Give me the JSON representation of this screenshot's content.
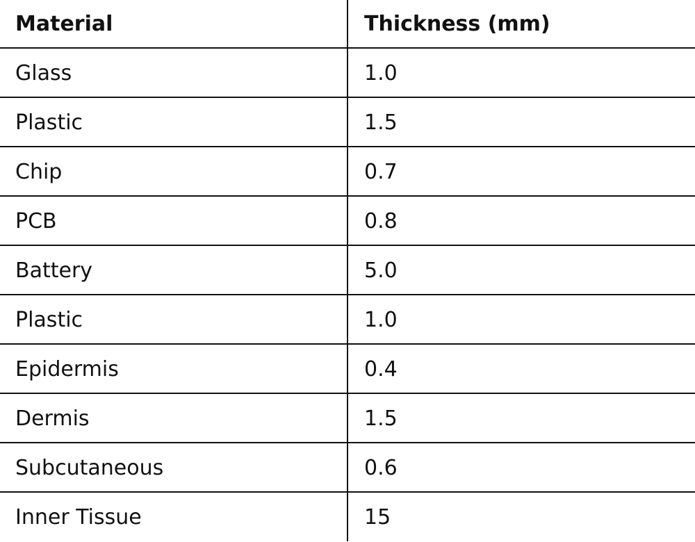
{
  "table": {
    "header": [
      "Material",
      "Thickness (mm)"
    ],
    "rows": [
      [
        "Glass",
        "1.0"
      ],
      [
        "Plastic",
        "1.5"
      ],
      [
        "Chip",
        "0.7"
      ],
      [
        "PCB",
        "0.8"
      ],
      [
        "Battery",
        "5.0"
      ],
      [
        "Plastic",
        "1.0"
      ],
      [
        "Epidermis",
        "0.4"
      ],
      [
        "Dermis",
        "1.5"
      ],
      [
        "Subcutaneous",
        "0.6"
      ],
      [
        "Inner Tissue",
        "15"
      ]
    ]
  }
}
